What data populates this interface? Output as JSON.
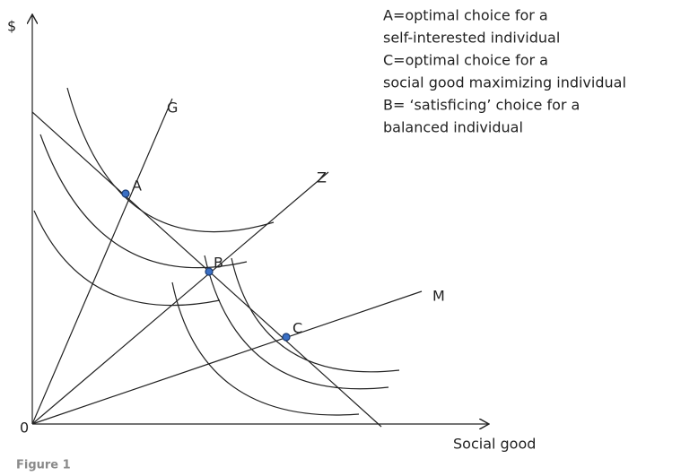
{
  "axes": {
    "y_label": "$",
    "x_label": "Social good",
    "origin": "0"
  },
  "lines": [
    {
      "label": "G"
    },
    {
      "label": "Z"
    },
    {
      "label": "M"
    }
  ],
  "points": [
    {
      "label": "A"
    },
    {
      "label": "B"
    },
    {
      "label": "C"
    }
  ],
  "legend": [
    "A=optimal choice for a",
    "self-interested individual",
    "C=optimal choice for a",
    "social good maximizing  individual",
    "B= ‘satisficing’ choice for a",
    "balanced individual"
  ],
  "caption": "Figure 1"
}
